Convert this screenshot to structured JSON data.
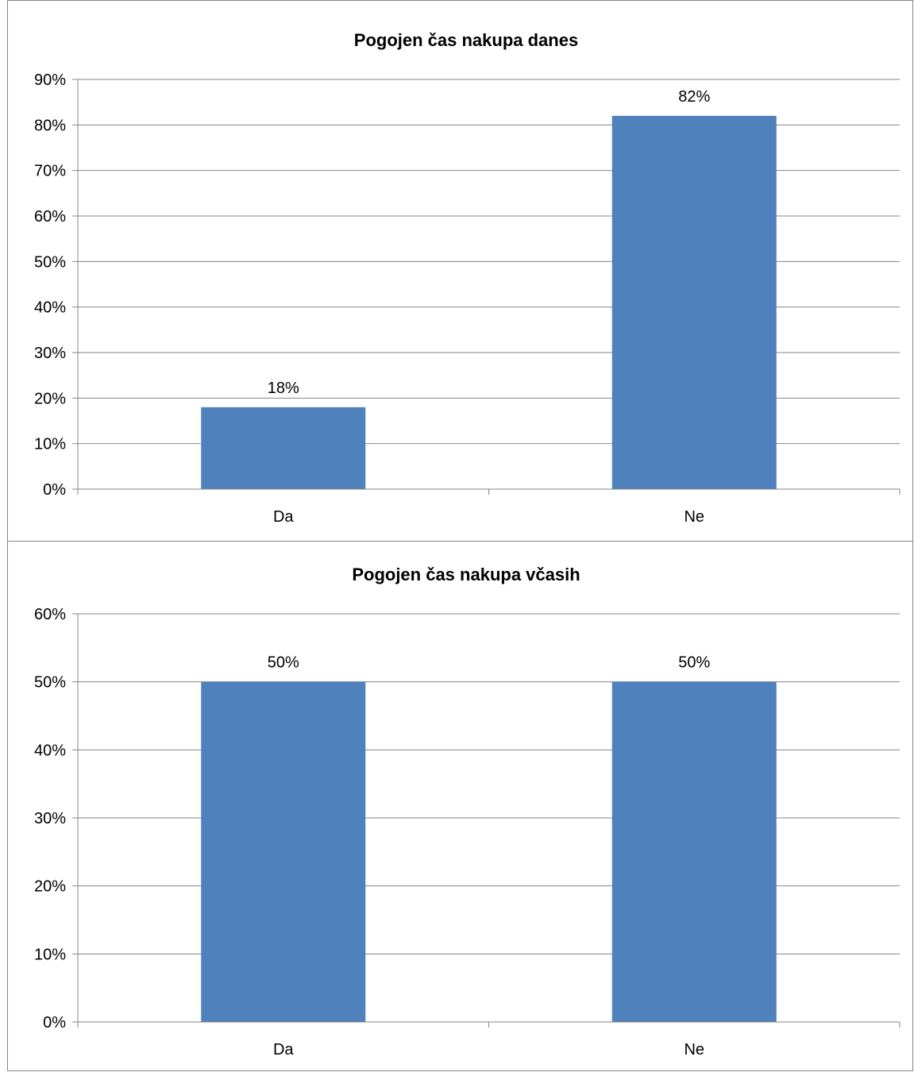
{
  "chart_data": [
    {
      "type": "bar",
      "title": "Pogojen čas nakupa danes",
      "categories": [
        "Da",
        "Ne"
      ],
      "values": [
        18,
        82
      ],
      "data_labels": [
        "18%",
        "82%"
      ],
      "yticks": [
        "0%",
        "10%",
        "20%",
        "30%",
        "40%",
        "50%",
        "60%",
        "70%",
        "80%",
        "90%"
      ],
      "ylim": [
        0,
        90
      ],
      "grid": true,
      "legend": "none",
      "bar_color": "#4f81bd"
    },
    {
      "type": "bar",
      "title": "Pogojen čas nakupa včasih",
      "categories": [
        "Da",
        "Ne"
      ],
      "values": [
        50,
        50
      ],
      "data_labels": [
        "50%",
        "50%"
      ],
      "yticks": [
        "0%",
        "10%",
        "20%",
        "30%",
        "40%",
        "50%",
        "60%"
      ],
      "ylim": [
        0,
        60
      ],
      "grid": true,
      "legend": "none",
      "bar_color": "#4f81bd"
    }
  ]
}
